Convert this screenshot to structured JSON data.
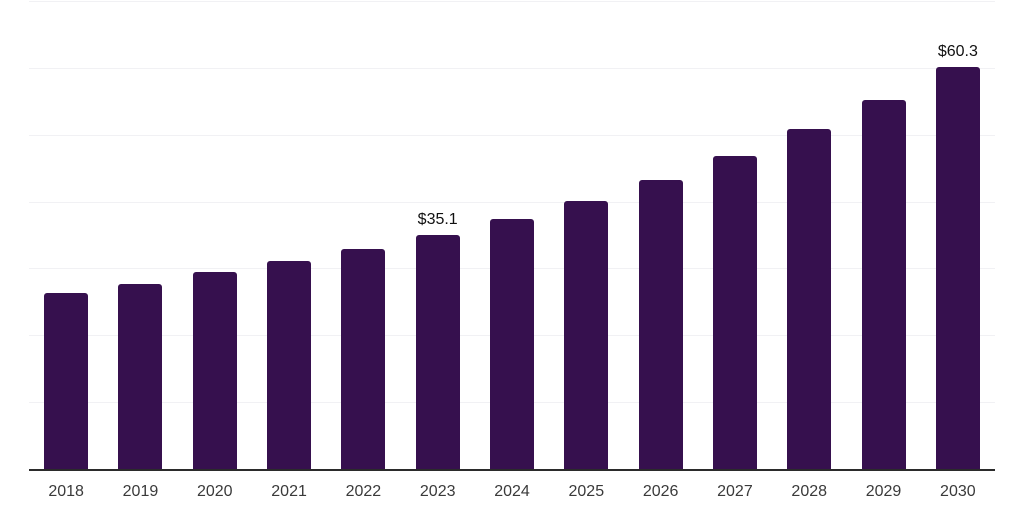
{
  "chart_data": {
    "type": "bar",
    "title": "",
    "xlabel": "",
    "ylabel": "",
    "categories": [
      "2018",
      "2019",
      "2020",
      "2021",
      "2022",
      "2023",
      "2024",
      "2025",
      "2026",
      "2027",
      "2028",
      "2029",
      "2030"
    ],
    "values": [
      26.5,
      27.9,
      29.6,
      31.2,
      33.0,
      35.1,
      37.5,
      40.3,
      43.4,
      46.9,
      51.0,
      55.4,
      60.3
    ],
    "data_labels": {
      "2023": "$35.1",
      "2030": "$60.3"
    },
    "value_unit": "USD billions (implied by $ labels)",
    "ylim": [
      0,
      70
    ],
    "grid_step": 10,
    "grid": true,
    "legend": false,
    "colors": {
      "bar": "#36104E",
      "gridline": "#f1f1f4",
      "axis_line": "#2b2b2b",
      "x_tick_label": "#3a3a3a",
      "data_label": "#111111",
      "background": "#ffffff"
    }
  }
}
